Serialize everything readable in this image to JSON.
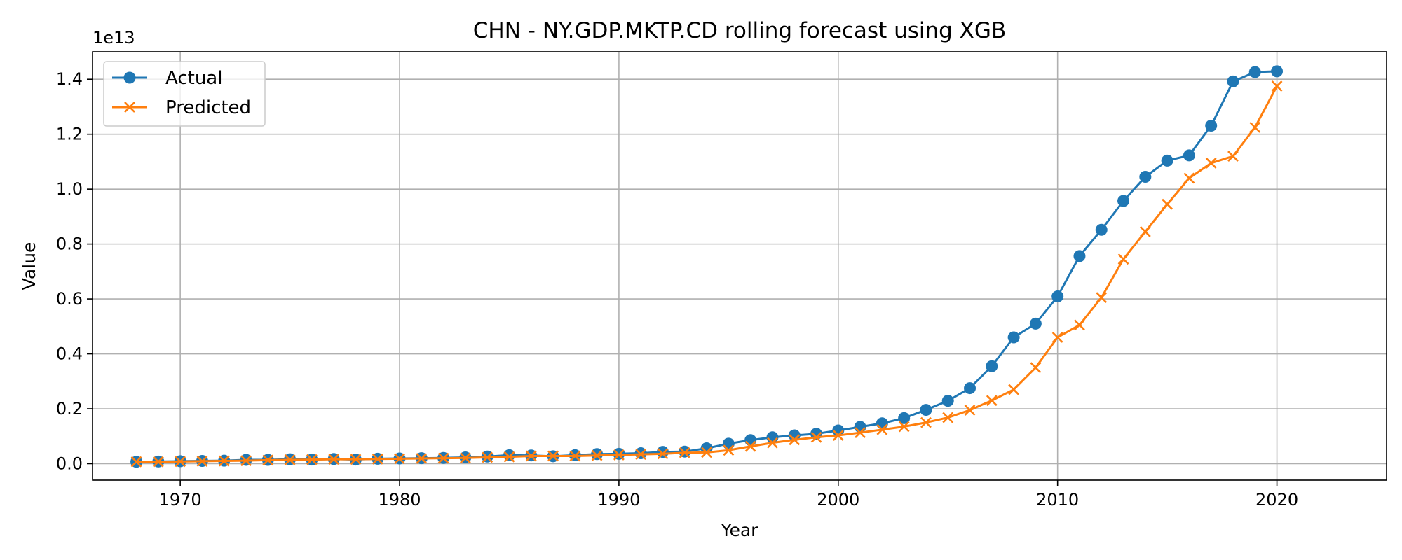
{
  "chart_data": {
    "type": "line",
    "title": "CHN - NY.GDP.MKTP.CD rolling forecast using XGB",
    "xlabel": "Year",
    "ylabel": "Value",
    "y_offset_label": "1e13",
    "xlim": [
      1966,
      2025
    ],
    "ylim": [
      -0.06,
      1.5
    ],
    "x_ticks": [
      1970,
      1980,
      1990,
      2000,
      2010,
      2020
    ],
    "y_ticks": [
      0.0,
      0.2,
      0.4,
      0.6,
      0.8,
      1.0,
      1.2,
      1.4
    ],
    "y_tick_labels": [
      "0.0",
      "0.2",
      "0.4",
      "0.6",
      "0.8",
      "1.0",
      "1.2",
      "1.4"
    ],
    "grid": true,
    "legend_position": "top-left",
    "x": [
      1968,
      1969,
      1970,
      1971,
      1972,
      1973,
      1974,
      1975,
      1976,
      1977,
      1978,
      1979,
      1980,
      1981,
      1982,
      1983,
      1984,
      1985,
      1986,
      1987,
      1988,
      1989,
      1990,
      1991,
      1992,
      1993,
      1994,
      1995,
      1996,
      1997,
      1998,
      1999,
      2000,
      2001,
      2002,
      2003,
      2004,
      2005,
      2006,
      2007,
      2008,
      2009,
      2010,
      2011,
      2012,
      2013,
      2014,
      2015,
      2016,
      2017,
      2018,
      2019,
      2020
    ],
    "series": [
      {
        "name": "Actual",
        "color": "#1f77b4",
        "marker": "circle",
        "values": [
          0.007,
          0.008,
          0.009,
          0.01,
          0.011,
          0.014,
          0.014,
          0.016,
          0.015,
          0.017,
          0.015,
          0.018,
          0.019,
          0.02,
          0.021,
          0.023,
          0.026,
          0.031,
          0.03,
          0.027,
          0.031,
          0.035,
          0.036,
          0.038,
          0.043,
          0.044,
          0.056,
          0.073,
          0.086,
          0.096,
          0.103,
          0.109,
          0.121,
          0.134,
          0.147,
          0.166,
          0.196,
          0.229,
          0.275,
          0.355,
          0.46,
          0.51,
          0.609,
          0.756,
          0.852,
          0.957,
          1.045,
          1.104,
          1.123,
          1.231,
          1.392,
          1.426,
          1.429
        ]
      },
      {
        "name": "Predicted",
        "color": "#ff7f0e",
        "marker": "x",
        "values": [
          0.007,
          0.007,
          0.008,
          0.009,
          0.01,
          0.011,
          0.013,
          0.014,
          0.015,
          0.016,
          0.016,
          0.017,
          0.018,
          0.019,
          0.02,
          0.021,
          0.023,
          0.025,
          0.028,
          0.028,
          0.028,
          0.03,
          0.032,
          0.034,
          0.036,
          0.04,
          0.041,
          0.049,
          0.063,
          0.076,
          0.087,
          0.096,
          0.103,
          0.113,
          0.124,
          0.135,
          0.15,
          0.168,
          0.195,
          0.23,
          0.27,
          0.35,
          0.46,
          0.505,
          0.605,
          0.745,
          0.845,
          0.945,
          1.04,
          1.095,
          1.12,
          1.225,
          1.375
        ]
      }
    ]
  }
}
